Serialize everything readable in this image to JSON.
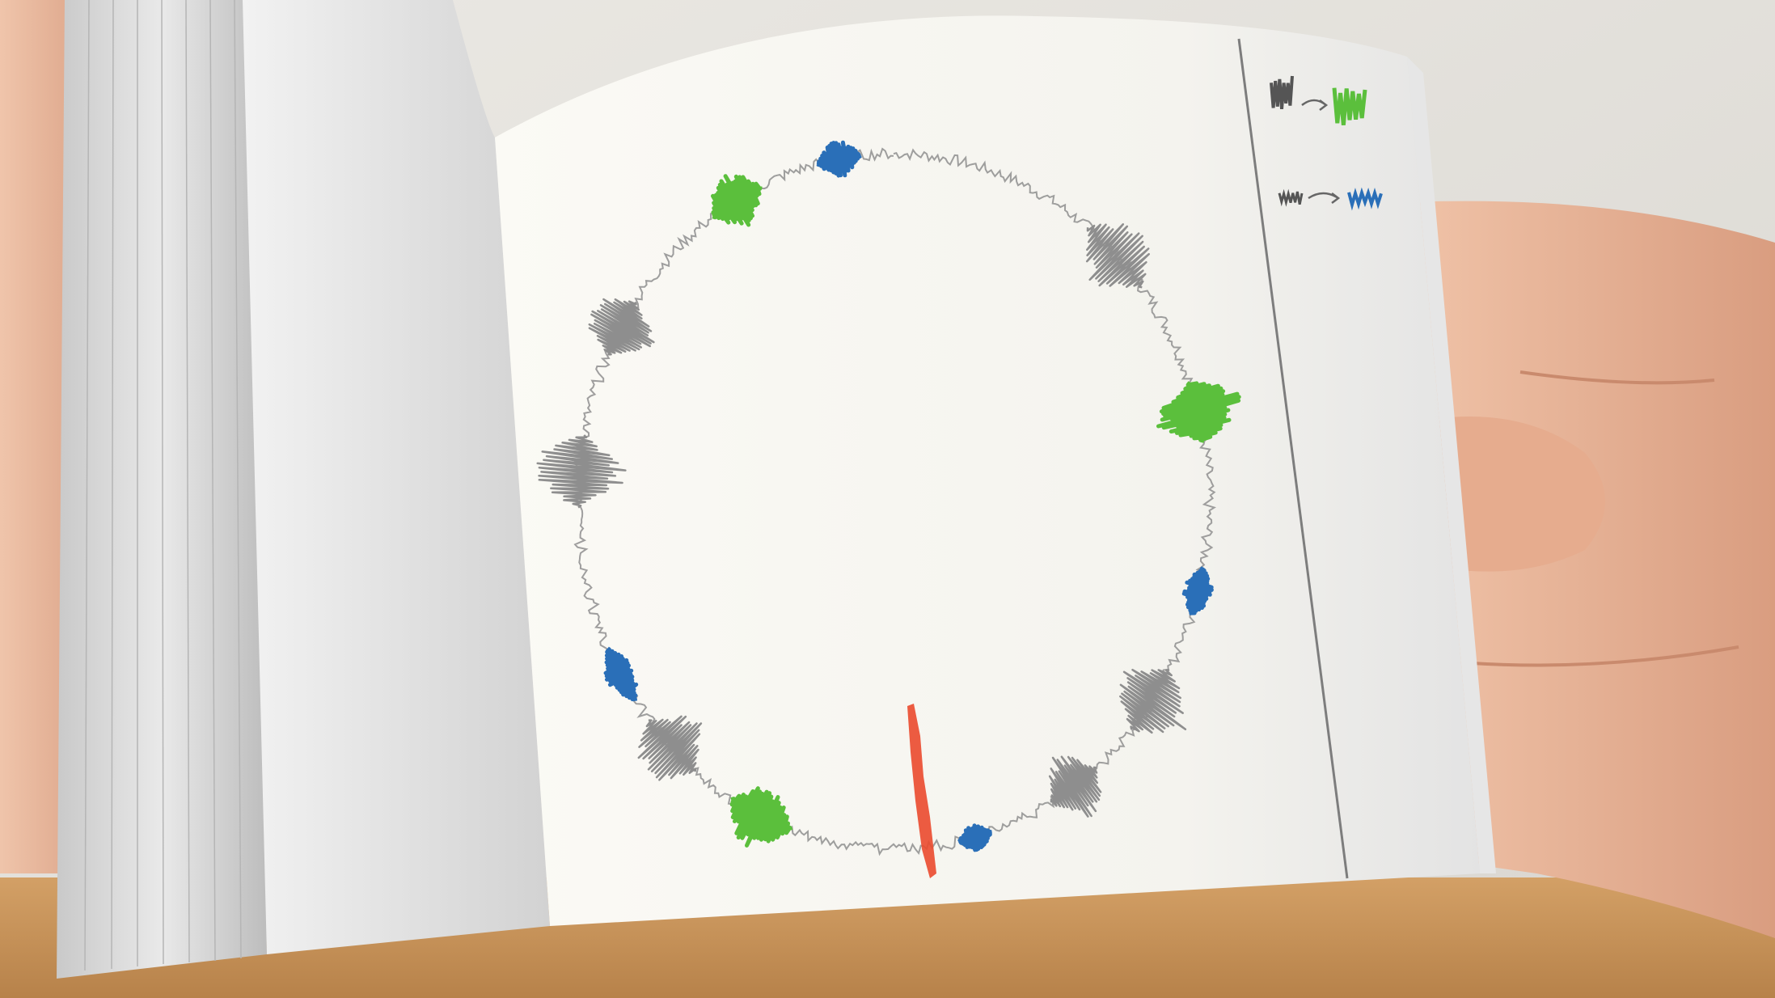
{
  "scene": {
    "subject": "flipbook",
    "colors": {
      "wall": "#e4e2dd",
      "table": "#c9955a",
      "skin": "#e9b79b",
      "paper": "#f7f6f1",
      "pencil": "#8e8e8e",
      "green": "#5bbf3c",
      "blue": "#2a6fb8",
      "red": "#ea4a2e"
    }
  }
}
